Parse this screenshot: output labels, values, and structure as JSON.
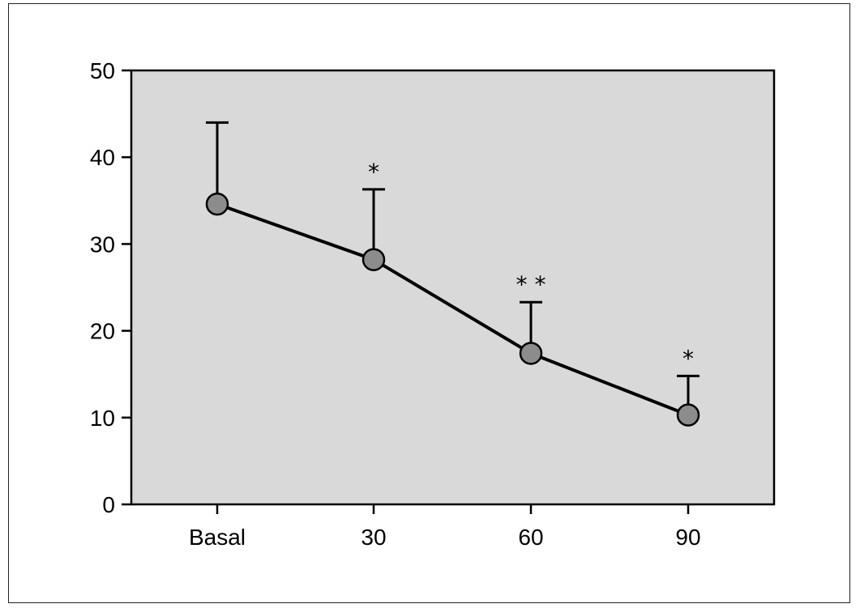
{
  "chart_data": {
    "type": "line",
    "title": "",
    "xlabel": "",
    "ylabel": "",
    "categories": [
      "Basal",
      "30",
      "60",
      "90"
    ],
    "series": [
      {
        "values": [
          34.6,
          28.2,
          17.4,
          10.3
        ],
        "error_upper": [
          44.0,
          36.3,
          23.3,
          14.8
        ]
      }
    ],
    "significance": [
      "",
      "*",
      "* *",
      "*"
    ],
    "ylim": [
      0,
      50
    ],
    "yticks": [
      0,
      10,
      20,
      30,
      40,
      50
    ],
    "grid": false,
    "legend": "none",
    "colors": {
      "plot_background": "#d9d9d9",
      "marker_fill": "#8c8c8c",
      "line": "#000000"
    }
  }
}
